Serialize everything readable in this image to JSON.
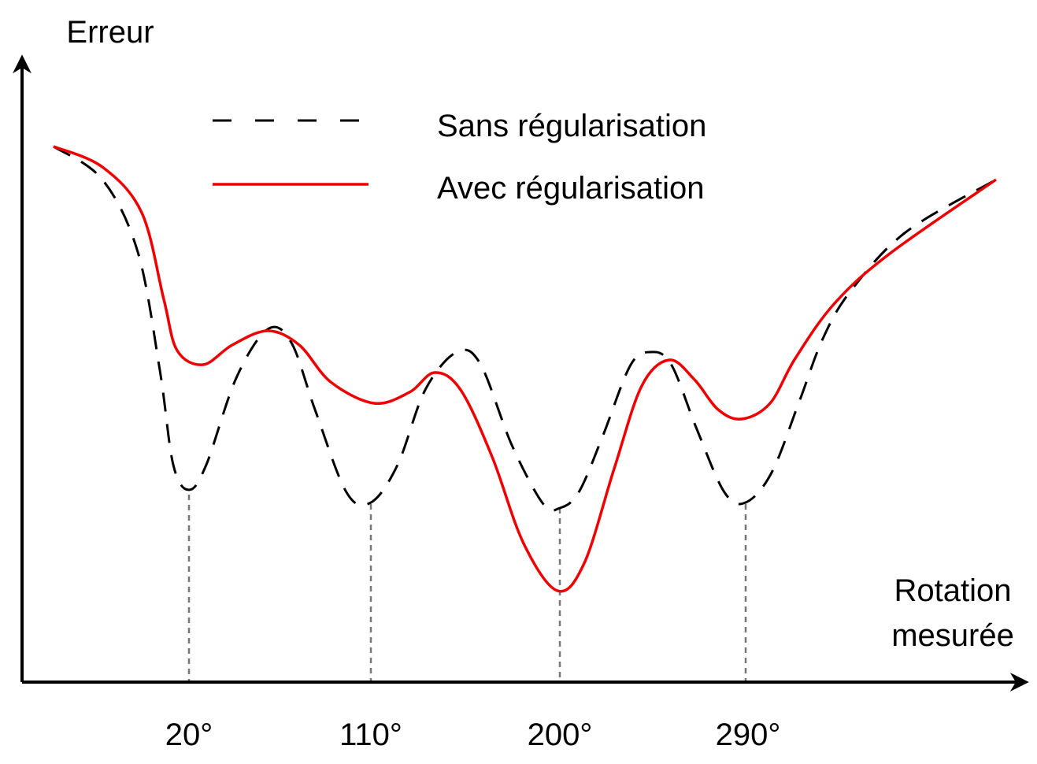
{
  "axes": {
    "y_label": "Erreur",
    "x_label": [
      "Rotation",
      "mesurée"
    ]
  },
  "legend": [
    {
      "label": "Sans régularisation"
    },
    {
      "label": "Avec régularisation"
    }
  ],
  "x_ticks": [
    "20°",
    "110°",
    "200°",
    "290°"
  ]
}
